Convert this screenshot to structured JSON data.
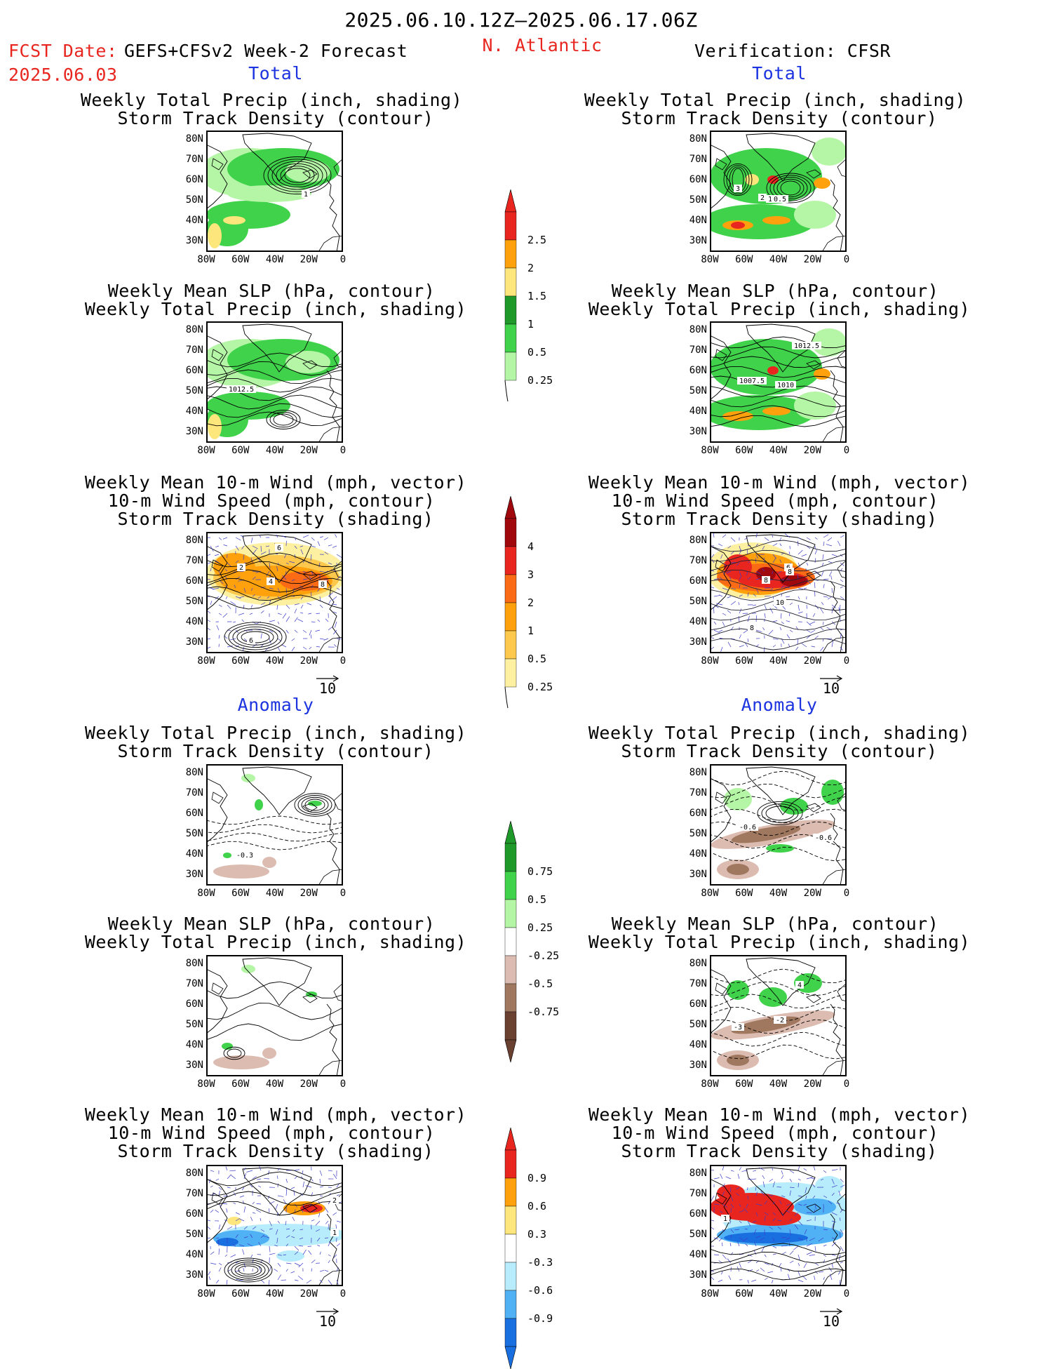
{
  "header": {
    "date_range": "2025.06.10.12Z–2025.06.17.06Z",
    "fcst_date_label": "FCST Date:",
    "model": "GEFS+CFSv2 Week-2 Forecast",
    "fcst_date": "2025.06.03",
    "region": "N. Atlantic",
    "verification": "Verification: CFSR"
  },
  "sections": {
    "total": "Total",
    "anomaly": "Anomaly"
  },
  "titles": {
    "precip_storm": [
      "Weekly Total Precip (inch, shading)",
      "Storm Track Density (contour)"
    ],
    "slp_precip": [
      "Weekly Mean SLP (hPa, contour)",
      "Weekly Total Precip (inch, shading)"
    ],
    "wind_storm": [
      "Weekly Mean 10-m Wind (mph, vector)",
      "10-m Wind Speed (mph, contour)",
      "Storm Track Density (shading)"
    ]
  },
  "axes": {
    "lat_ticks": [
      "80N",
      "70N",
      "60N",
      "50N",
      "40N",
      "30N"
    ],
    "lon_ticks": [
      "80W",
      "60W",
      "40W",
      "20W",
      "0"
    ]
  },
  "vector_ref": "10",
  "colorbars": {
    "precip_total": {
      "labels": [
        "2.5",
        "2",
        "1.5",
        "1",
        "0.5",
        "0.25"
      ],
      "colors": [
        "#e8261f",
        "#fea10d",
        "#fde67c",
        "#1f9a2a",
        "#41d24b",
        "#b5f6a6"
      ]
    },
    "storm_total": {
      "labels": [
        "4",
        "3",
        "2",
        "1",
        "0.5",
        "0.25"
      ],
      "colors": [
        "#a0080d",
        "#e8261f",
        "#fb6a14",
        "#fea10d",
        "#fdc84b",
        "#fdf0a0"
      ]
    },
    "precip_anom": {
      "labels": [
        "0.75",
        "0.5",
        "0.25",
        "-0.25",
        "-0.5",
        "-0.75"
      ],
      "colors": [
        "#1f9a2a",
        "#41d24b",
        "#b5f6a6",
        "#ffffff",
        "#dcbcb0",
        "#a07860",
        "#6a4030"
      ]
    },
    "storm_anom": {
      "labels": [
        "0.9",
        "0.6",
        "0.3",
        "-0.3",
        "-0.6",
        "-0.9"
      ],
      "colors": [
        "#e8261f",
        "#fea10d",
        "#fde67c",
        "#ffffff",
        "#b6ecfb",
        "#50b2f5",
        "#1a6fe0"
      ]
    }
  },
  "contour_labels": {
    "fc_total_precip": [
      "1"
    ],
    "ob_total_precip": [
      "3",
      "2",
      "1",
      "0.5"
    ],
    "fc_total_slp": [
      "1012.5"
    ],
    "ob_total_slp": [
      "1012.5",
      "1007.5",
      "1010"
    ],
    "fc_total_wind": [
      "6",
      "2",
      "4",
      "8",
      "6"
    ],
    "ob_total_wind": [
      "6",
      "8",
      "8",
      "10",
      "8"
    ],
    "fc_anom_precip": [
      "-0.3"
    ],
    "ob_anom_precip": [
      "-0.6",
      "-0.6"
    ],
    "ob_anom_slp": [
      "4",
      "-2",
      "-3"
    ],
    "fc_anom_wind": [
      "2",
      "1"
    ],
    "ob_anom_wind": [
      "1"
    ]
  }
}
